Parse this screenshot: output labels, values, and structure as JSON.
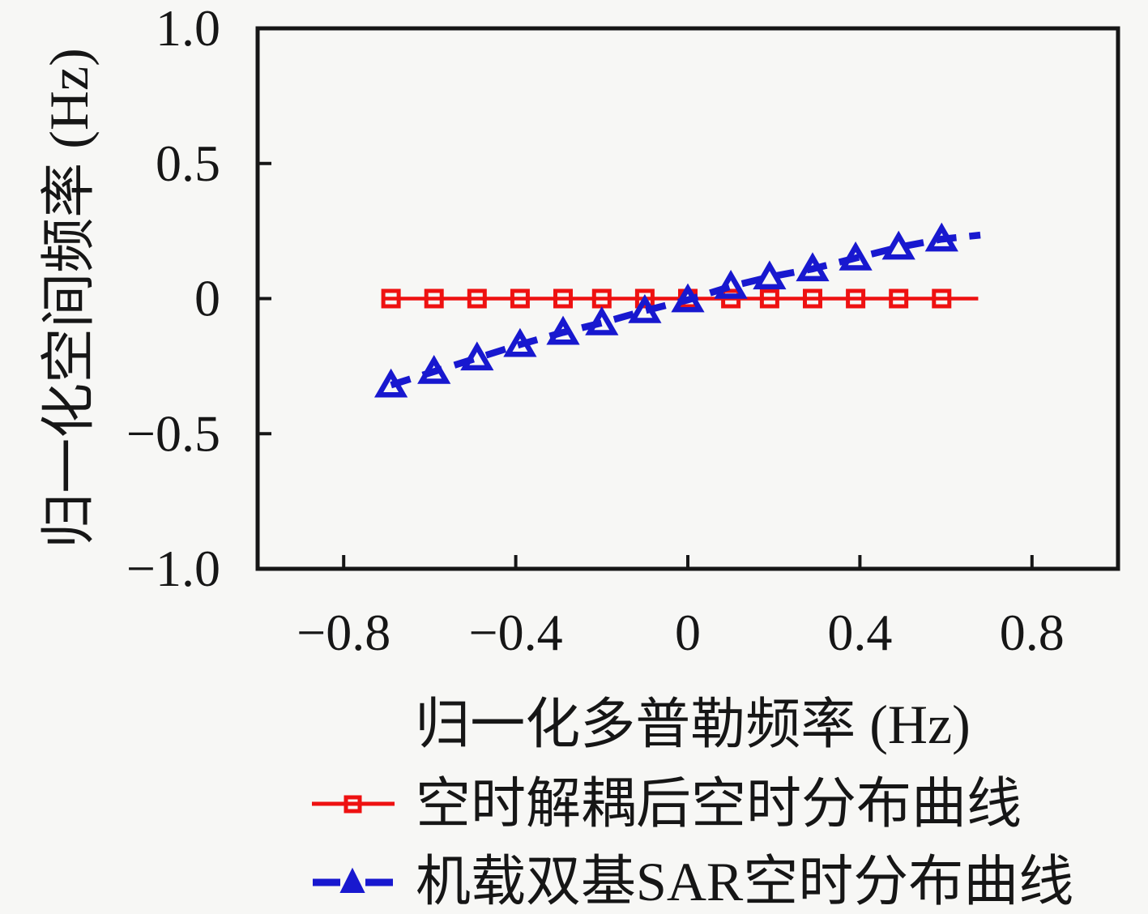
{
  "figure": {
    "background": "#f7f7f5",
    "xlabel": "归一化多普勒频率 (Hz)",
    "ylabel": "归一化空间频率 (Hz)"
  },
  "legend": {
    "position": "below-chart",
    "items": [
      {
        "label": "空时解耦后空时分布曲线",
        "color": "#ee1111",
        "line": "solid",
        "marker": "open-square"
      },
      {
        "label": "机载双基SAR空时分布曲线",
        "color": "#1818cf",
        "line": "dashed",
        "marker": "filled-triangle"
      }
    ]
  },
  "chart_data": {
    "type": "line",
    "title": "",
    "xlabel": "归一化多普勒频率 (Hz)",
    "ylabel": "归一化空间频率 (Hz)",
    "xlim": [
      -1,
      1
    ],
    "ylim": [
      -1,
      1
    ],
    "grid": false,
    "x_ticks": [
      {
        "v": -0.8,
        "label": "−0.8"
      },
      {
        "v": -0.4,
        "label": "−0.4"
      },
      {
        "v": 0,
        "label": "0"
      },
      {
        "v": 0.4,
        "label": "0.4"
      },
      {
        "v": 0.8,
        "label": "0.8"
      }
    ],
    "y_ticks": [
      {
        "v": 1.0,
        "label": "1.0",
        "mark": false
      },
      {
        "v": 0.5,
        "label": "0.5",
        "mark": true
      },
      {
        "v": 0,
        "label": "0",
        "mark": true
      },
      {
        "v": -0.5,
        "label": "−0.5",
        "mark": true
      },
      {
        "v": -1.0,
        "label": "−1.0",
        "mark": false
      }
    ],
    "x": [
      -0.69,
      -0.59,
      -0.49,
      -0.39,
      -0.29,
      -0.2,
      -0.1,
      0.0,
      0.1,
      0.19,
      0.29,
      0.39,
      0.49,
      0.59
    ],
    "series": [
      {
        "name": "空时解耦后空时分布曲线",
        "color": "#ee1111",
        "style": "solid",
        "marker": "square",
        "values": [
          0,
          0,
          0,
          0,
          0,
          0,
          0,
          0,
          0,
          0,
          0,
          0,
          0,
          0
        ],
        "line_start": [
          -0.705,
          0
        ],
        "line_end": [
          0.675,
          0
        ]
      },
      {
        "name": "机载双基SAR空时分布曲线",
        "color": "#1818cf",
        "style": "dashed",
        "marker": "triangle",
        "values": [
          -0.32,
          -0.27,
          -0.22,
          -0.17,
          -0.125,
          -0.09,
          -0.045,
          -0.005,
          0.045,
          0.08,
          0.11,
          0.15,
          0.19,
          0.22
        ],
        "line_end": [
          0.68,
          0.235
        ]
      }
    ]
  }
}
